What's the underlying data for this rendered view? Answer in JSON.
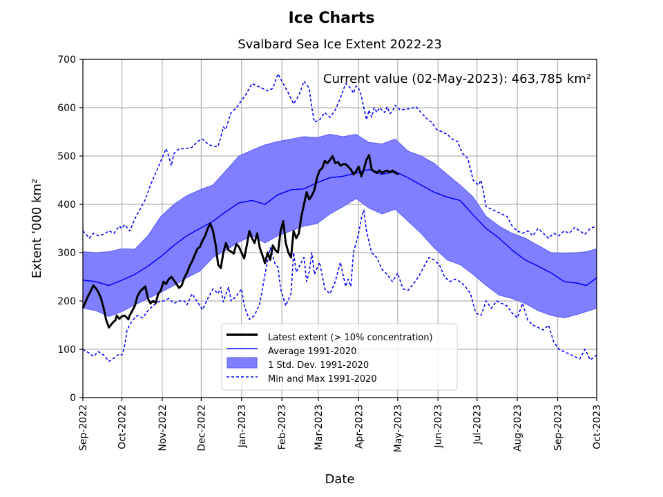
{
  "chart_data": {
    "type": "line",
    "title": "Ice Charts",
    "subtitle": "Svalbard Sea Ice Extent 2022-23",
    "xlabel": "Date",
    "ylabel": "Extent '000 km²",
    "ylim": [
      0,
      700
    ],
    "yticks": [
      0,
      100,
      200,
      300,
      400,
      500,
      600,
      700
    ],
    "xlim_days": [
      0,
      395
    ],
    "x_unit": "days since 01-Sep-2022",
    "xticks": [
      {
        "label": "Sep-2022",
        "day": 0
      },
      {
        "label": "Oct-2022",
        "day": 30
      },
      {
        "label": "Nov-2022",
        "day": 61
      },
      {
        "label": "Dec-2022",
        "day": 91
      },
      {
        "label": "Jan-2023",
        "day": 122
      },
      {
        "label": "Feb-2023",
        "day": 153
      },
      {
        "label": "Mar-2023",
        "day": 181
      },
      {
        "label": "Apr-2023",
        "day": 212
      },
      {
        "label": "May-2023",
        "day": 242
      },
      {
        "label": "Jun-2023",
        "day": 273
      },
      {
        "label": "Jul-2023",
        "day": 303
      },
      {
        "label": "Aug-2023",
        "day": 334
      },
      {
        "label": "Sep-2023",
        "day": 365
      },
      {
        "label": "Oct-2023",
        "day": 395
      }
    ],
    "grid": true,
    "annotation": "Current value (02-May-2023): 463,785 km²",
    "legend": {
      "placement": "lower-center",
      "entries": [
        {
          "label": "Latest extent (> 10% concentration)",
          "style": "thick-black-line"
        },
        {
          "label": "Average 1991-2020",
          "style": "blue-line"
        },
        {
          "label": "1 Std. Dev. 1991-2020",
          "style": "blue-band"
        },
        {
          "label": "Min and Max 1991-2020",
          "style": "blue-dashed"
        }
      ]
    },
    "colors": {
      "latest": "#000000",
      "average": "#0000ff",
      "band_fill": "#7f7fff",
      "band_edge": "#5a5aff",
      "minmax": "#0000ff",
      "grid": "#b0b0b0"
    },
    "series": [
      {
        "name": "Latest extent (> 10% concentration)",
        "x": [
          0,
          2,
          4,
          6,
          8,
          10,
          12,
          14,
          16,
          18,
          20,
          22,
          24,
          25,
          26,
          28,
          30,
          32,
          34,
          35,
          36,
          38,
          40,
          42,
          43,
          44,
          46,
          48,
          50,
          52,
          54,
          56,
          58,
          60,
          62,
          64,
          66,
          68,
          70,
          72,
          74,
          76,
          78,
          80,
          82,
          84,
          86,
          88,
          90,
          92,
          94,
          96,
          98,
          100,
          102,
          104,
          106,
          108,
          110,
          112,
          114,
          116,
          118,
          120,
          122,
          124,
          126,
          128,
          130,
          132,
          134,
          136,
          138,
          140,
          142,
          144,
          146,
          148,
          150,
          152,
          154,
          156,
          158,
          160,
          162,
          164,
          166,
          168,
          170,
          172,
          174,
          176,
          178,
          180,
          182,
          184,
          186,
          188,
          190,
          192,
          194,
          196,
          198,
          200,
          202,
          204,
          206,
          208,
          210,
          212,
          214,
          216,
          218,
          220,
          222,
          224,
          226,
          228,
          230,
          232,
          234,
          236,
          238,
          240,
          242,
          243
        ],
        "values": [
          185,
          198,
          210,
          220,
          232,
          226,
          218,
          205,
          185,
          160,
          145,
          152,
          158,
          160,
          170,
          163,
          168,
          170,
          165,
          162,
          170,
          180,
          190,
          210,
          215,
          220,
          225,
          230,
          205,
          195,
          200,
          196,
          215,
          222,
          240,
          235,
          245,
          250,
          243,
          235,
          227,
          232,
          248,
          258,
          272,
          282,
          295,
          308,
          312,
          325,
          335,
          350,
          360,
          345,
          318,
          275,
          268,
          300,
          320,
          305,
          302,
          298,
          318,
          312,
          300,
          288,
          315,
          345,
          330,
          320,
          340,
          310,
          295,
          278,
          300,
          285,
          315,
          305,
          300,
          345,
          365,
          320,
          300,
          290,
          345,
          330,
          340,
          375,
          400,
          425,
          410,
          418,
          430,
          455,
          470,
          475,
          490,
          485,
          492,
          500,
          485,
          488,
          480,
          483,
          483,
          478,
          472,
          462,
          468,
          478,
          458,
          472,
          492,
          502,
          472,
          468,
          465,
          470,
          465,
          468,
          470,
          466,
          470,
          465,
          463,
          463.785
        ],
        "note": "values in thousands of km²"
      },
      {
        "name": "Average 1991-2020",
        "x": [
          0,
          10,
          20,
          30,
          40,
          50,
          60,
          70,
          80,
          90,
          100,
          110,
          120,
          130,
          140,
          150,
          160,
          170,
          180,
          190,
          200,
          210,
          220,
          230,
          240,
          250,
          260,
          270,
          280,
          290,
          300,
          310,
          320,
          330,
          340,
          350,
          360,
          370,
          380,
          387,
          395
        ],
        "values": [
          243,
          240,
          232,
          243,
          255,
          272,
          292,
          315,
          335,
          350,
          365,
          385,
          403,
          408,
          400,
          420,
          430,
          432,
          445,
          455,
          458,
          465,
          472,
          462,
          468,
          455,
          440,
          425,
          415,
          408,
          378,
          350,
          330,
          305,
          285,
          272,
          258,
          240,
          237,
          232,
          248
        ]
      },
      {
        "name": "1 Std. Dev. 1991-2020 (upper)",
        "x": [
          0,
          10,
          20,
          30,
          40,
          50,
          60,
          70,
          80,
          90,
          100,
          110,
          120,
          130,
          140,
          150,
          160,
          170,
          180,
          190,
          200,
          210,
          220,
          230,
          240,
          250,
          260,
          270,
          280,
          290,
          300,
          310,
          320,
          330,
          340,
          350,
          360,
          370,
          380,
          387,
          395
        ],
        "values": [
          302,
          300,
          302,
          308,
          307,
          335,
          375,
          400,
          418,
          430,
          440,
          470,
          500,
          512,
          523,
          530,
          535,
          540,
          538,
          545,
          540,
          545,
          528,
          525,
          535,
          510,
          500,
          485,
          462,
          440,
          415,
          375,
          355,
          340,
          330,
          315,
          300,
          298,
          300,
          302,
          308
        ]
      },
      {
        "name": "1 Std. Dev. 1991-2020 (lower)",
        "x": [
          0,
          10,
          20,
          30,
          40,
          50,
          60,
          70,
          80,
          90,
          100,
          110,
          120,
          130,
          140,
          150,
          160,
          170,
          180,
          190,
          200,
          210,
          220,
          230,
          240,
          250,
          260,
          270,
          280,
          290,
          300,
          310,
          320,
          330,
          340,
          350,
          360,
          370,
          380,
          387,
          395
        ],
        "values": [
          185,
          180,
          168,
          178,
          192,
          205,
          218,
          232,
          248,
          262,
          290,
          305,
          322,
          335,
          320,
          335,
          345,
          355,
          360,
          380,
          395,
          412,
          392,
          380,
          390,
          365,
          340,
          310,
          285,
          275,
          255,
          232,
          212,
          205,
          195,
          180,
          170,
          165,
          172,
          178,
          185
        ]
      },
      {
        "name": "Min 1991-2020",
        "x": [
          0,
          5,
          8,
          12,
          16,
          20,
          24,
          28,
          30,
          32,
          34,
          38,
          42,
          46,
          50,
          54,
          58,
          62,
          66,
          70,
          74,
          78,
          80,
          84,
          88,
          92,
          96,
          100,
          104,
          106,
          108,
          110,
          112,
          114,
          118,
          122,
          124,
          126,
          128,
          132,
          136,
          140,
          144,
          148,
          150,
          152,
          156,
          160,
          162,
          164,
          166,
          170,
          172,
          174,
          176,
          178,
          182,
          186,
          190,
          194,
          198,
          202,
          204,
          206,
          208,
          210,
          212,
          214,
          216,
          218,
          222,
          226,
          230,
          234,
          238,
          242,
          246,
          250,
          254,
          258,
          262,
          266,
          270,
          274,
          278,
          282,
          286,
          290,
          294,
          298,
          302,
          306,
          310,
          314,
          318,
          322,
          326,
          330,
          334,
          338,
          342,
          346,
          350,
          354,
          358,
          362,
          366,
          370,
          374,
          378,
          382,
          386,
          390,
          395
        ],
        "values": [
          100,
          92,
          85,
          95,
          88,
          75,
          82,
          90,
          88,
          105,
          140,
          160,
          170,
          165,
          180,
          190,
          198,
          200,
          205,
          195,
          200,
          200,
          192,
          215,
          198,
          182,
          205,
          225,
          215,
          228,
          198,
          215,
          228,
          200,
          210,
          225,
          190,
          175,
          162,
          170,
          195,
          255,
          310,
          275,
          270,
          225,
          190,
          215,
          300,
          260,
          270,
          290,
          240,
          260,
          300,
          255,
          280,
          225,
          215,
          240,
          280,
          230,
          245,
          230,
          300,
          320,
          340,
          370,
          388,
          345,
          300,
          290,
          265,
          255,
          240,
          258,
          225,
          222,
          235,
          250,
          270,
          290,
          285,
          275,
          250,
          240,
          245,
          240,
          230,
          215,
          175,
          170,
          200,
          185,
          200,
          195,
          190,
          175,
          165,
          195,
          160,
          150,
          145,
          140,
          150,
          115,
          100,
          95,
          90,
          85,
          80,
          100,
          78,
          88
        ],
        "style": "dashed"
      },
      {
        "name": "Max 1991-2020",
        "x": [
          0,
          5,
          8,
          12,
          16,
          20,
          24,
          28,
          30,
          32,
          36,
          40,
          44,
          48,
          52,
          56,
          60,
          64,
          66,
          68,
          70,
          74,
          78,
          84,
          88,
          92,
          96,
          100,
          104,
          106,
          108,
          110,
          112,
          114,
          118,
          122,
          126,
          130,
          134,
          138,
          142,
          146,
          150,
          154,
          158,
          162,
          166,
          170,
          174,
          176,
          178,
          182,
          186,
          190,
          194,
          198,
          202,
          206,
          208,
          210,
          212,
          214,
          216,
          218,
          220,
          222,
          224,
          226,
          228,
          230,
          232,
          234,
          236,
          238,
          240,
          244,
          248,
          252,
          256,
          260,
          264,
          268,
          272,
          276,
          280,
          284,
          288,
          292,
          296,
          300,
          302,
          304,
          306,
          308,
          310,
          314,
          318,
          322,
          326,
          330,
          334,
          338,
          342,
          346,
          350,
          354,
          358,
          362,
          366,
          370,
          374,
          378,
          382,
          386,
          390,
          395
        ],
        "values": [
          345,
          330,
          340,
          335,
          338,
          345,
          340,
          355,
          350,
          358,
          345,
          370,
          390,
          410,
          440,
          465,
          490,
          515,
          500,
          480,
          505,
          515,
          515,
          518,
          530,
          535,
          525,
          520,
          520,
          540,
          560,
          555,
          575,
          590,
          600,
          615,
          630,
          650,
          645,
          640,
          635,
          640,
          670,
          650,
          630,
          608,
          625,
          655,
          640,
          600,
          570,
          575,
          590,
          580,
          595,
          620,
          650,
          640,
          630,
          645,
          640,
          625,
          600,
          575,
          595,
          580,
          600,
          590,
          600,
          595,
          590,
          602,
          588,
          592,
          605,
          595,
          597,
          598,
          602,
          590,
          578,
          570,
          555,
          550,
          545,
          535,
          530,
          505,
          495,
          450,
          445,
          440,
          450,
          425,
          395,
          390,
          385,
          380,
          375,
          355,
          345,
          340,
          345,
          335,
          350,
          340,
          330,
          340,
          335,
          345,
          340,
          352,
          345,
          338,
          350,
          355
        ],
        "style": "dashed"
      }
    ]
  }
}
